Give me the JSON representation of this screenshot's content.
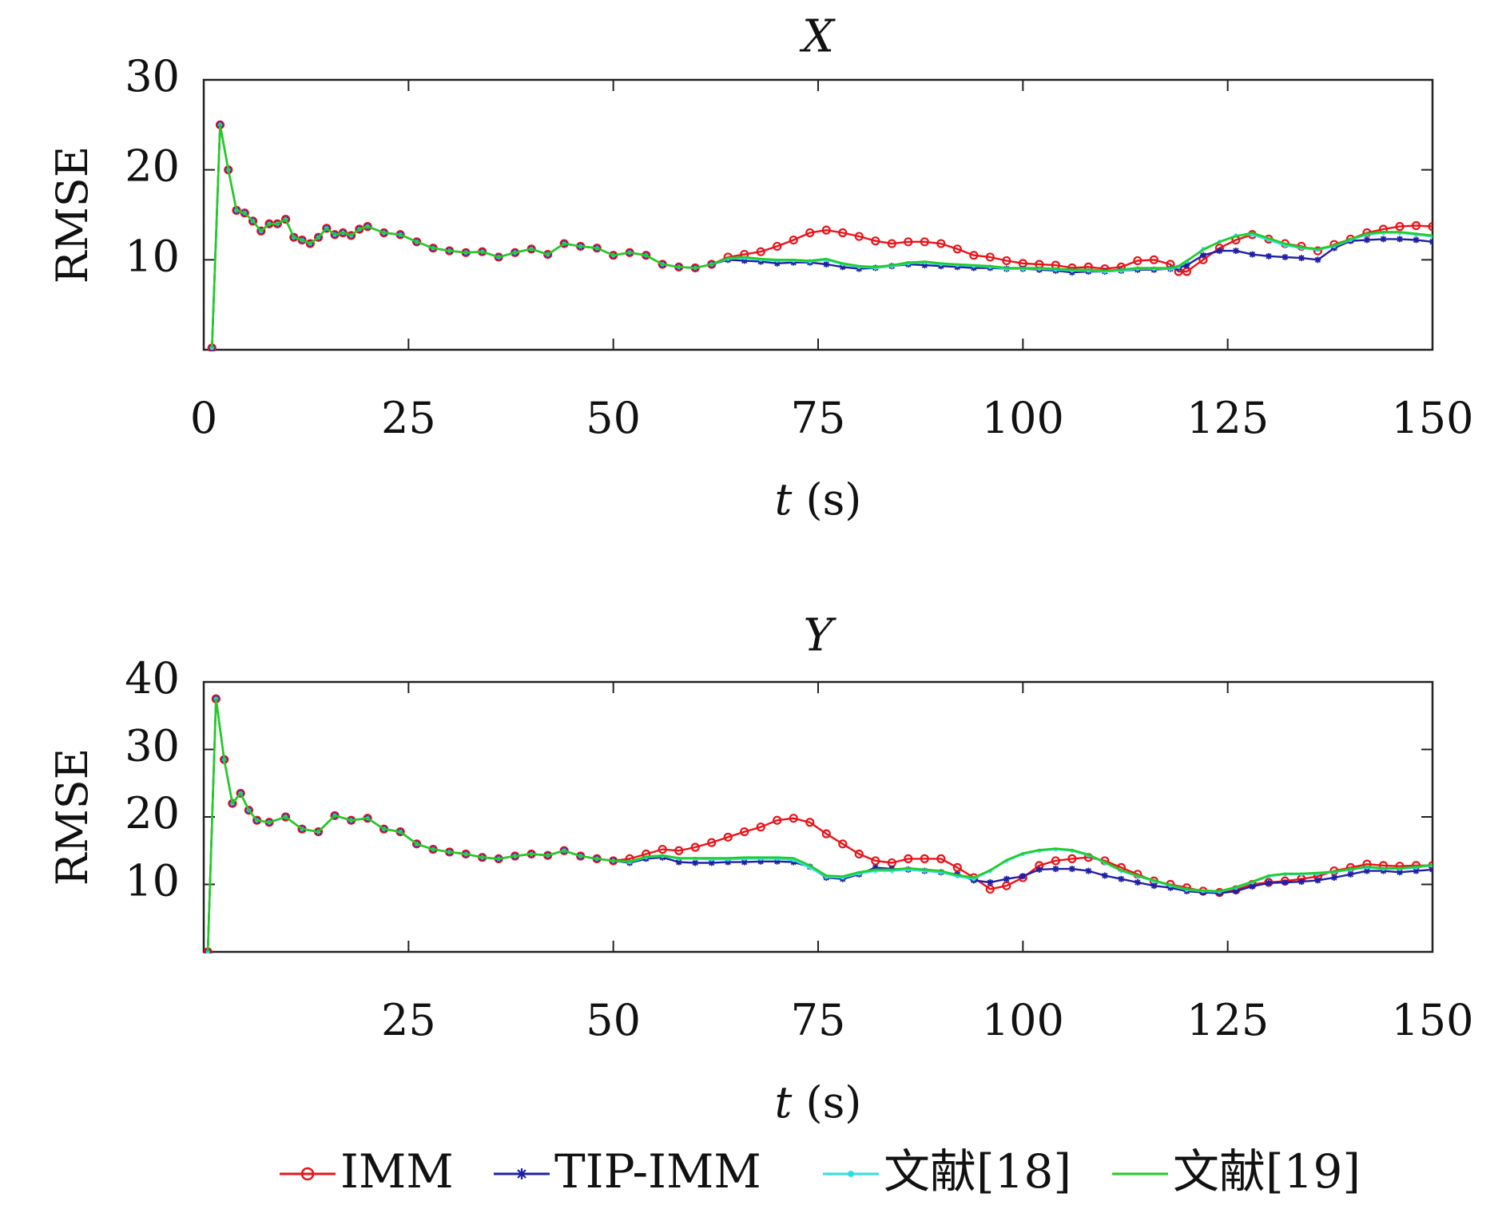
{
  "chart_data": [
    {
      "type": "line",
      "title": "X",
      "xlabel_var": "t",
      "xlabel_unit": "(s)",
      "ylabel": "RMSE",
      "xlim": [
        0,
        150
      ],
      "ylim": [
        0,
        30
      ],
      "xticks": [
        0,
        25,
        50,
        75,
        100,
        125,
        150
      ],
      "yticks": [
        10,
        20,
        30
      ],
      "x": [
        1,
        2,
        3,
        4,
        5,
        6,
        7,
        8,
        9,
        10,
        11,
        12,
        13,
        14,
        15,
        16,
        17,
        18,
        19,
        20,
        22,
        24,
        26,
        28,
        30,
        32,
        34,
        36,
        38,
        40,
        42,
        44,
        46,
        48,
        50,
        52,
        54,
        56,
        58,
        60,
        62,
        64,
        66,
        68,
        70,
        72,
        74,
        76,
        78,
        80,
        82,
        84,
        86,
        88,
        90,
        92,
        94,
        96,
        98,
        100,
        102,
        104,
        106,
        108,
        110,
        112,
        114,
        116,
        118,
        119,
        120,
        122,
        124,
        126,
        128,
        130,
        132,
        134,
        136,
        138,
        140,
        142,
        144,
        146,
        148,
        150
      ],
      "series": [
        {
          "name": "IMM",
          "color": "#e8141a",
          "marker": "circle",
          "values": [
            0.2,
            25,
            20,
            15.5,
            15.2,
            14.3,
            13.2,
            14,
            14,
            14.5,
            12.5,
            12.2,
            11.8,
            12.5,
            13.5,
            12.8,
            13,
            12.7,
            13.4,
            13.7,
            13,
            12.8,
            12,
            11.3,
            11,
            10.8,
            10.9,
            10.3,
            10.8,
            11.2,
            10.6,
            11.8,
            11.5,
            11.3,
            10.5,
            10.8,
            10.5,
            9.5,
            9.2,
            9.1,
            9.5,
            10.3,
            10.6,
            10.9,
            11.5,
            12.2,
            13,
            13.3,
            13,
            12.6,
            12.1,
            11.8,
            12,
            12,
            11.8,
            11.2,
            10.5,
            10.3,
            9.9,
            9.6,
            9.5,
            9.4,
            9.1,
            9.2,
            9,
            9.2,
            9.9,
            10,
            9.5,
            8.7,
            8.7,
            10,
            11.3,
            12.2,
            12.8,
            12.3,
            11.8,
            11.5,
            11,
            11.7,
            12.3,
            13,
            13.4,
            13.7,
            13.8,
            13.7
          ]
        },
        {
          "name": "TIP-IMM",
          "color": "#1f1fa8",
          "marker": "star",
          "values": [
            0.2,
            25,
            20,
            15.5,
            15.2,
            14.3,
            13.2,
            14,
            14,
            14.5,
            12.5,
            12.2,
            11.8,
            12.5,
            13.5,
            12.8,
            13,
            12.7,
            13.4,
            13.7,
            13,
            12.8,
            12,
            11.3,
            11,
            10.8,
            10.9,
            10.3,
            10.8,
            11.2,
            10.6,
            11.8,
            11.5,
            11.3,
            10.5,
            10.8,
            10.5,
            9.5,
            9.2,
            9.1,
            9.5,
            10,
            9.9,
            9.8,
            9.6,
            9.7,
            9.7,
            9.5,
            9.2,
            9,
            9.1,
            9.3,
            9.5,
            9.4,
            9.3,
            9.2,
            9.1,
            9.1,
            9,
            9,
            8.9,
            8.8,
            8.6,
            8.7,
            8.7,
            8.8,
            8.9,
            8.9,
            9,
            9.1,
            9.4,
            10.5,
            11,
            11,
            10.6,
            10.4,
            10.3,
            10.2,
            10,
            11.3,
            12.1,
            12.2,
            12.3,
            12.3,
            12.2,
            12
          ]
        },
        {
          "name": "文献[18]",
          "color": "#2de0e0",
          "marker": "point",
          "values": [
            0.2,
            25,
            20,
            15.5,
            15.2,
            14.3,
            13.2,
            14,
            14,
            14.5,
            12.5,
            12.2,
            11.8,
            12.5,
            13.5,
            12.8,
            13,
            12.7,
            13.4,
            13.7,
            13,
            12.8,
            12,
            11.3,
            11,
            10.8,
            10.9,
            10.3,
            10.8,
            11.2,
            10.6,
            11.8,
            11.5,
            11.3,
            10.5,
            10.8,
            10.5,
            9.5,
            9.2,
            9.1,
            9.5,
            10.1,
            10.2,
            10,
            9.9,
            9.9,
            9.8,
            10,
            9.5,
            9.2,
            9.1,
            9.3,
            9.6,
            9.7,
            9.5,
            9.4,
            9.3,
            9.2,
            9,
            9,
            9,
            8.9,
            8.8,
            8.8,
            8.7,
            8.8,
            9,
            9,
            9,
            9.2,
            9.8,
            11.2,
            12,
            12.7,
            12.8,
            12.2,
            11.6,
            11.3,
            11.1,
            11.5,
            12.2,
            12.8,
            13,
            13,
            12.8,
            12.6
          ]
        },
        {
          "name": "文献[19]",
          "color": "#22cc22",
          "marker": "none",
          "values": [
            0.2,
            25,
            20,
            15.5,
            15.2,
            14.3,
            13.2,
            14,
            14,
            14.5,
            12.5,
            12.2,
            11.8,
            12.5,
            13.5,
            12.8,
            13,
            12.7,
            13.4,
            13.7,
            13,
            12.8,
            12,
            11.3,
            11,
            10.8,
            10.9,
            10.3,
            10.8,
            11.2,
            10.6,
            11.8,
            11.5,
            11.3,
            10.5,
            10.8,
            10.5,
            9.5,
            9.2,
            9.1,
            9.5,
            10.2,
            10.3,
            10.1,
            10,
            10,
            9.9,
            10.1,
            9.6,
            9.3,
            9.2,
            9.4,
            9.7,
            9.8,
            9.6,
            9.5,
            9.4,
            9.3,
            9.1,
            9.1,
            9.1,
            9,
            8.9,
            8.9,
            8.8,
            8.9,
            9.1,
            9.1,
            9.1,
            9.3,
            9.9,
            11.1,
            12,
            12.6,
            13,
            12.4,
            11.8,
            11.4,
            11.2,
            11.6,
            12.3,
            12.9,
            13.1,
            13.1,
            12.9,
            12.7
          ]
        }
      ]
    },
    {
      "type": "line",
      "title": "Y",
      "xlabel_var": "t",
      "xlabel_unit": "(s)",
      "ylabel": "RMSE",
      "xlim": [
        0,
        150
      ],
      "ylim": [
        0,
        40
      ],
      "xticks": [
        25,
        50,
        75,
        100,
        125,
        150
      ],
      "yticks": [
        10,
        20,
        30,
        40
      ],
      "x": [
        0.5,
        1.5,
        2.5,
        3.5,
        4.5,
        5.5,
        6.5,
        8,
        10,
        12,
        14,
        16,
        18,
        20,
        22,
        24,
        26,
        28,
        30,
        32,
        34,
        36,
        38,
        40,
        42,
        44,
        46,
        48,
        50,
        52,
        54,
        56,
        58,
        60,
        62,
        64,
        66,
        68,
        70,
        72,
        74,
        76,
        78,
        80,
        82,
        84,
        86,
        88,
        90,
        92,
        94,
        96,
        98,
        100,
        102,
        104,
        106,
        108,
        110,
        112,
        114,
        116,
        118,
        120,
        122,
        124,
        126,
        128,
        130,
        132,
        134,
        136,
        138,
        140,
        142,
        144,
        146,
        148,
        150
      ],
      "series": [
        {
          "name": "IMM",
          "color": "#e8141a",
          "marker": "circle",
          "values": [
            0,
            37.5,
            28.5,
            22,
            23.5,
            21,
            19.5,
            19.2,
            20,
            18.2,
            17.8,
            20.2,
            19.5,
            19.8,
            18.2,
            17.8,
            16,
            15.2,
            14.8,
            14.5,
            14,
            13.8,
            14.2,
            14.5,
            14.3,
            15,
            14.2,
            13.8,
            13.5,
            13.8,
            14.5,
            15.2,
            15,
            15.5,
            16.2,
            17,
            17.8,
            18.5,
            19.5,
            19.8,
            19.2,
            17.5,
            16,
            14.5,
            13.5,
            13.2,
            13.8,
            13.8,
            13.8,
            12.5,
            11,
            9.3,
            9.8,
            11,
            12.8,
            13.5,
            13.8,
            14,
            13.5,
            12.5,
            11.5,
            10.5,
            10,
            9.5,
            9,
            8.8,
            9.2,
            10,
            10.3,
            10.5,
            10.8,
            11.2,
            12,
            12.5,
            13,
            12.8,
            12.7,
            12.8,
            12.8
          ]
        },
        {
          "name": "TIP-IMM",
          "color": "#1f1fa8",
          "marker": "star",
          "values": [
            0,
            37.5,
            28.5,
            22,
            23.5,
            21,
            19.5,
            19.2,
            20,
            18.2,
            17.8,
            20.2,
            19.5,
            19.8,
            18.2,
            17.8,
            16,
            15.2,
            14.8,
            14.5,
            14,
            13.8,
            14.2,
            14.5,
            14.3,
            15,
            14.2,
            13.8,
            13.5,
            13.2,
            13.8,
            14,
            13.3,
            13.2,
            13.2,
            13.3,
            13.3,
            13.4,
            13.4,
            13.3,
            12.6,
            11,
            10.8,
            11.5,
            12.5,
            12.3,
            12.2,
            12,
            11.8,
            11.5,
            10.6,
            10.3,
            10.8,
            11.2,
            12.2,
            12.3,
            12.3,
            12,
            11.3,
            10.8,
            10.3,
            9.8,
            9.5,
            9,
            8.8,
            8.7,
            9,
            9.7,
            10.2,
            10.3,
            10.4,
            10.6,
            11,
            11.5,
            12,
            12,
            11.8,
            12,
            12.2
          ]
        },
        {
          "name": "文献[18]",
          "color": "#2de0e0",
          "marker": "point",
          "values": [
            0,
            37.5,
            28.5,
            22,
            23.5,
            21,
            19.5,
            19.2,
            20,
            18.2,
            17.8,
            20.2,
            19.5,
            19.8,
            18.2,
            17.8,
            16,
            15.2,
            14.8,
            14.5,
            14,
            13.8,
            14.2,
            14.5,
            14.3,
            15,
            14.2,
            13.8,
            13.5,
            13.3,
            14,
            14.2,
            13.8,
            13.8,
            13.7,
            13.7,
            13.8,
            13.8,
            13.8,
            13.6,
            12.5,
            11.1,
            11,
            11.6,
            12,
            12,
            12.2,
            12,
            11.8,
            11.2,
            10.8,
            12,
            13.5,
            14.5,
            15,
            15.2,
            15,
            14.3,
            13.2,
            12,
            11.2,
            10.5,
            9.8,
            9.2,
            9,
            8.9,
            9.5,
            10.3,
            11.2,
            11.5,
            11.5,
            11.6,
            11.8,
            12.2,
            12.5,
            12.3,
            12.3,
            12.5,
            12.8
          ]
        },
        {
          "name": "文献[19]",
          "color": "#22cc22",
          "marker": "none",
          "values": [
            0,
            37.5,
            28.5,
            22,
            23.5,
            21,
            19.5,
            19.2,
            20,
            18.2,
            17.8,
            20.2,
            19.5,
            19.8,
            18.2,
            17.8,
            16,
            15.2,
            14.8,
            14.5,
            14,
            13.8,
            14.2,
            14.5,
            14.3,
            15,
            14.2,
            13.8,
            13.5,
            13.4,
            14.1,
            14.3,
            13.9,
            13.9,
            13.9,
            13.9,
            14,
            14,
            14,
            13.9,
            12.8,
            11.3,
            11.2,
            11.8,
            12.2,
            12.2,
            12.4,
            12.2,
            12,
            11.4,
            11,
            12.1,
            13.6,
            14.6,
            15.1,
            15.3,
            15.1,
            14.4,
            13.3,
            12.1,
            11.3,
            10.6,
            9.9,
            9.3,
            9.1,
            9,
            9.6,
            10.4,
            11.3,
            11.6,
            11.6,
            11.7,
            11.9,
            12.3,
            12.6,
            12.4,
            12.4,
            12.6,
            12.9
          ]
        }
      ]
    }
  ],
  "legend": {
    "placement": "bottom",
    "items": [
      {
        "label": "IMM",
        "color": "#e8141a",
        "marker": "circle"
      },
      {
        "label": "TIP-IMM",
        "color": "#1f1fa8",
        "marker": "star"
      },
      {
        "label": "文献[18]",
        "color": "#2de0e0",
        "marker": "point"
      },
      {
        "label": "文献[19]",
        "color": "#22cc22",
        "marker": "none"
      }
    ]
  }
}
